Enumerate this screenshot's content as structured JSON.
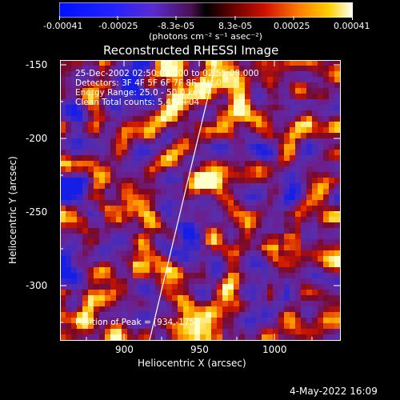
{
  "colorbar": {
    "ticks": [
      "-0.00041",
      "-0.00025",
      "-8.3e-05",
      "8.3e-05",
      "0.00025",
      "0.00041"
    ],
    "unit_label": "(photons cm⁻² s⁻¹ asec⁻²)"
  },
  "plot": {
    "title": "Reconstructed RHESSI Image",
    "xlabel": "Heliocentric X (arcsec)",
    "ylabel": "Heliocentric Y (arcsec)",
    "xticks": [
      "900",
      "950",
      "1000"
    ],
    "yticks": [
      "-150",
      "-200",
      "-250",
      "-300"
    ]
  },
  "overlay": {
    "line1": "25-Dec-2002 02:50:08.000 to 02:55:08.000",
    "line2": "Detectors: 3F 4F 5F 6F 7F 8F, Att 0",
    "line3": "Energy Range: 25.0 - 50.0 keV",
    "line4": "Clean    Total counts: 5.45E+04",
    "peak": "Position of Peak = [934,-175]"
  },
  "footer": {
    "timestamp": "4-May-2022 16:09"
  }
}
